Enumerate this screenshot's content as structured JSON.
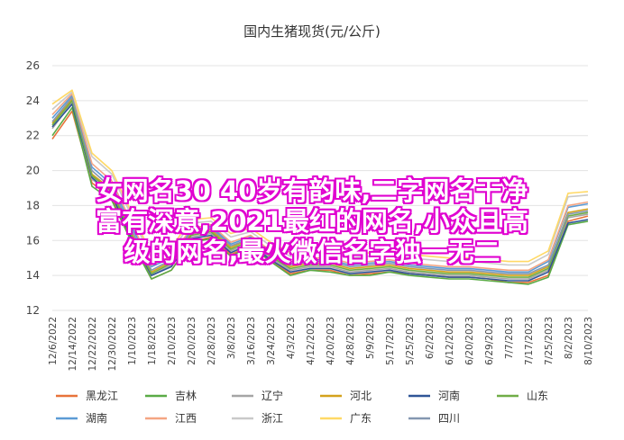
{
  "chart_data": {
    "type": "line",
    "title": "国内生猪现货(元/公斤)",
    "xlabel": "",
    "ylabel": "",
    "ylim": [
      12,
      26
    ],
    "yticks": [
      12,
      14,
      16,
      18,
      20,
      22,
      24,
      26
    ],
    "grid": true,
    "legend_position": "bottom",
    "x": [
      "12/6/2022",
      "12/14/2022",
      "12/22/2022",
      "12/30/2022",
      "1/10/2023",
      "1/18/2023",
      "2/10/2023",
      "2/20/2023",
      "2/28/2023",
      "3/8/2023",
      "3/16/2023",
      "3/24/2023",
      "4/3/2023",
      "4/12/2023",
      "4/20/2023",
      "4/28/2023",
      "5/9/2023",
      "5/17/2023",
      "5/25/2023",
      "6/2/2023",
      "6/12/2023",
      "6/20/2023",
      "6/29/2023",
      "7/7/2023",
      "7/17/2023",
      "7/25/2023",
      "8/2/2023",
      "8/10/2023"
    ],
    "series": [
      {
        "name": "黑龙江",
        "color": "#e8733a",
        "values": [
          21.8,
          23.4,
          19.3,
          18.4,
          16.0,
          13.8,
          14.3,
          15.9,
          16.2,
          15.2,
          15.7,
          14.8,
          14.1,
          14.3,
          14.3,
          14.0,
          14.1,
          14.2,
          14.1,
          14.0,
          13.9,
          13.9,
          13.8,
          13.6,
          13.6,
          14.0,
          17.1,
          17.4
        ]
      },
      {
        "name": "吉林",
        "color": "#5aab46",
        "values": [
          22.0,
          23.6,
          19.1,
          18.3,
          15.9,
          13.8,
          14.3,
          15.9,
          16.1,
          15.1,
          15.7,
          14.8,
          14.0,
          14.3,
          14.2,
          14.0,
          14.0,
          14.2,
          14.0,
          13.9,
          13.8,
          13.8,
          13.7,
          13.6,
          13.5,
          13.9,
          16.9,
          17.1
        ]
      },
      {
        "name": "辽宁",
        "color": "#a5a5a5",
        "values": [
          22.4,
          23.9,
          19.5,
          18.7,
          16.2,
          14.0,
          14.6,
          16.2,
          16.4,
          15.4,
          15.9,
          15.0,
          14.3,
          14.5,
          14.5,
          14.2,
          14.3,
          14.4,
          14.2,
          14.1,
          14.0,
          14.0,
          13.9,
          13.8,
          13.8,
          14.3,
          17.3,
          17.5
        ]
      },
      {
        "name": "河北",
        "color": "#d4a21c",
        "values": [
          22.7,
          24.1,
          19.8,
          18.9,
          16.4,
          14.2,
          14.8,
          16.4,
          16.6,
          15.6,
          16.1,
          15.2,
          14.5,
          14.7,
          14.7,
          14.4,
          14.5,
          14.6,
          14.4,
          14.3,
          14.2,
          14.2,
          14.1,
          14.0,
          14.0,
          14.5,
          17.6,
          17.8
        ]
      },
      {
        "name": "河南",
        "color": "#2f5597",
        "values": [
          22.5,
          23.8,
          19.6,
          18.6,
          16.1,
          14.0,
          14.5,
          16.1,
          16.3,
          15.3,
          15.8,
          14.9,
          14.2,
          14.4,
          14.4,
          14.1,
          14.2,
          14.3,
          14.1,
          14.0,
          13.9,
          13.9,
          13.8,
          13.7,
          13.7,
          14.2,
          17.0,
          17.2
        ]
      },
      {
        "name": "山东",
        "color": "#70ad47",
        "values": [
          22.6,
          24.0,
          19.7,
          18.8,
          16.3,
          14.1,
          14.7,
          16.3,
          16.5,
          15.5,
          16.0,
          15.1,
          14.4,
          14.6,
          14.6,
          14.3,
          14.4,
          14.5,
          14.3,
          14.2,
          14.1,
          14.1,
          14.0,
          13.9,
          13.9,
          14.4,
          17.4,
          17.6
        ]
      },
      {
        "name": "湖南",
        "color": "#5b9bd5",
        "values": [
          23.0,
          24.3,
          20.2,
          19.2,
          16.8,
          14.5,
          15.0,
          16.6,
          16.8,
          15.8,
          16.2,
          15.3,
          14.7,
          14.9,
          14.9,
          14.6,
          14.7,
          14.8,
          14.6,
          14.5,
          14.4,
          14.4,
          14.3,
          14.2,
          14.2,
          14.8,
          17.9,
          18.1
        ]
      },
      {
        "name": "江西",
        "color": "#f4a582",
        "values": [
          23.2,
          24.4,
          20.4,
          19.4,
          17.0,
          14.6,
          15.1,
          16.7,
          16.9,
          15.9,
          16.3,
          15.4,
          14.8,
          15.0,
          15.0,
          14.7,
          14.8,
          14.9,
          14.7,
          14.6,
          14.5,
          14.5,
          14.4,
          14.3,
          14.3,
          14.9,
          18.0,
          18.2
        ]
      },
      {
        "name": "浙江",
        "color": "#c9c9c9",
        "values": [
          23.5,
          24.5,
          20.8,
          19.8,
          17.4,
          15.0,
          15.4,
          17.0,
          17.1,
          16.2,
          16.5,
          15.7,
          15.1,
          15.3,
          15.3,
          15.0,
          15.1,
          15.2,
          15.0,
          14.9,
          14.8,
          14.8,
          14.7,
          14.6,
          14.6,
          15.2,
          18.5,
          18.6
        ]
      },
      {
        "name": "广东",
        "color": "#ffd966",
        "values": [
          23.8,
          24.6,
          21.0,
          20.0,
          17.6,
          15.2,
          15.6,
          17.2,
          17.3,
          16.4,
          16.7,
          15.9,
          15.3,
          15.5,
          15.5,
          15.2,
          15.3,
          15.4,
          15.2,
          15.1,
          15.0,
          15.0,
          14.9,
          14.8,
          14.8,
          15.4,
          18.7,
          18.8
        ]
      },
      {
        "name": "四川",
        "color": "#8497b0",
        "values": [
          22.8,
          24.2,
          20.0,
          19.0,
          16.6,
          14.3,
          14.9,
          16.5,
          16.7,
          15.7,
          16.1,
          15.2,
          14.6,
          14.8,
          14.8,
          14.5,
          14.6,
          14.7,
          14.5,
          14.4,
          14.3,
          14.3,
          14.2,
          14.1,
          14.1,
          14.6,
          17.5,
          17.7
        ]
      }
    ]
  },
  "overlay": {
    "line1": "女网名30 40岁有韵味,二字网名干净",
    "line2": "富有深意,2021最红的网名,小众且高",
    "line3": "级的网名,最火微信名字独一无二"
  }
}
